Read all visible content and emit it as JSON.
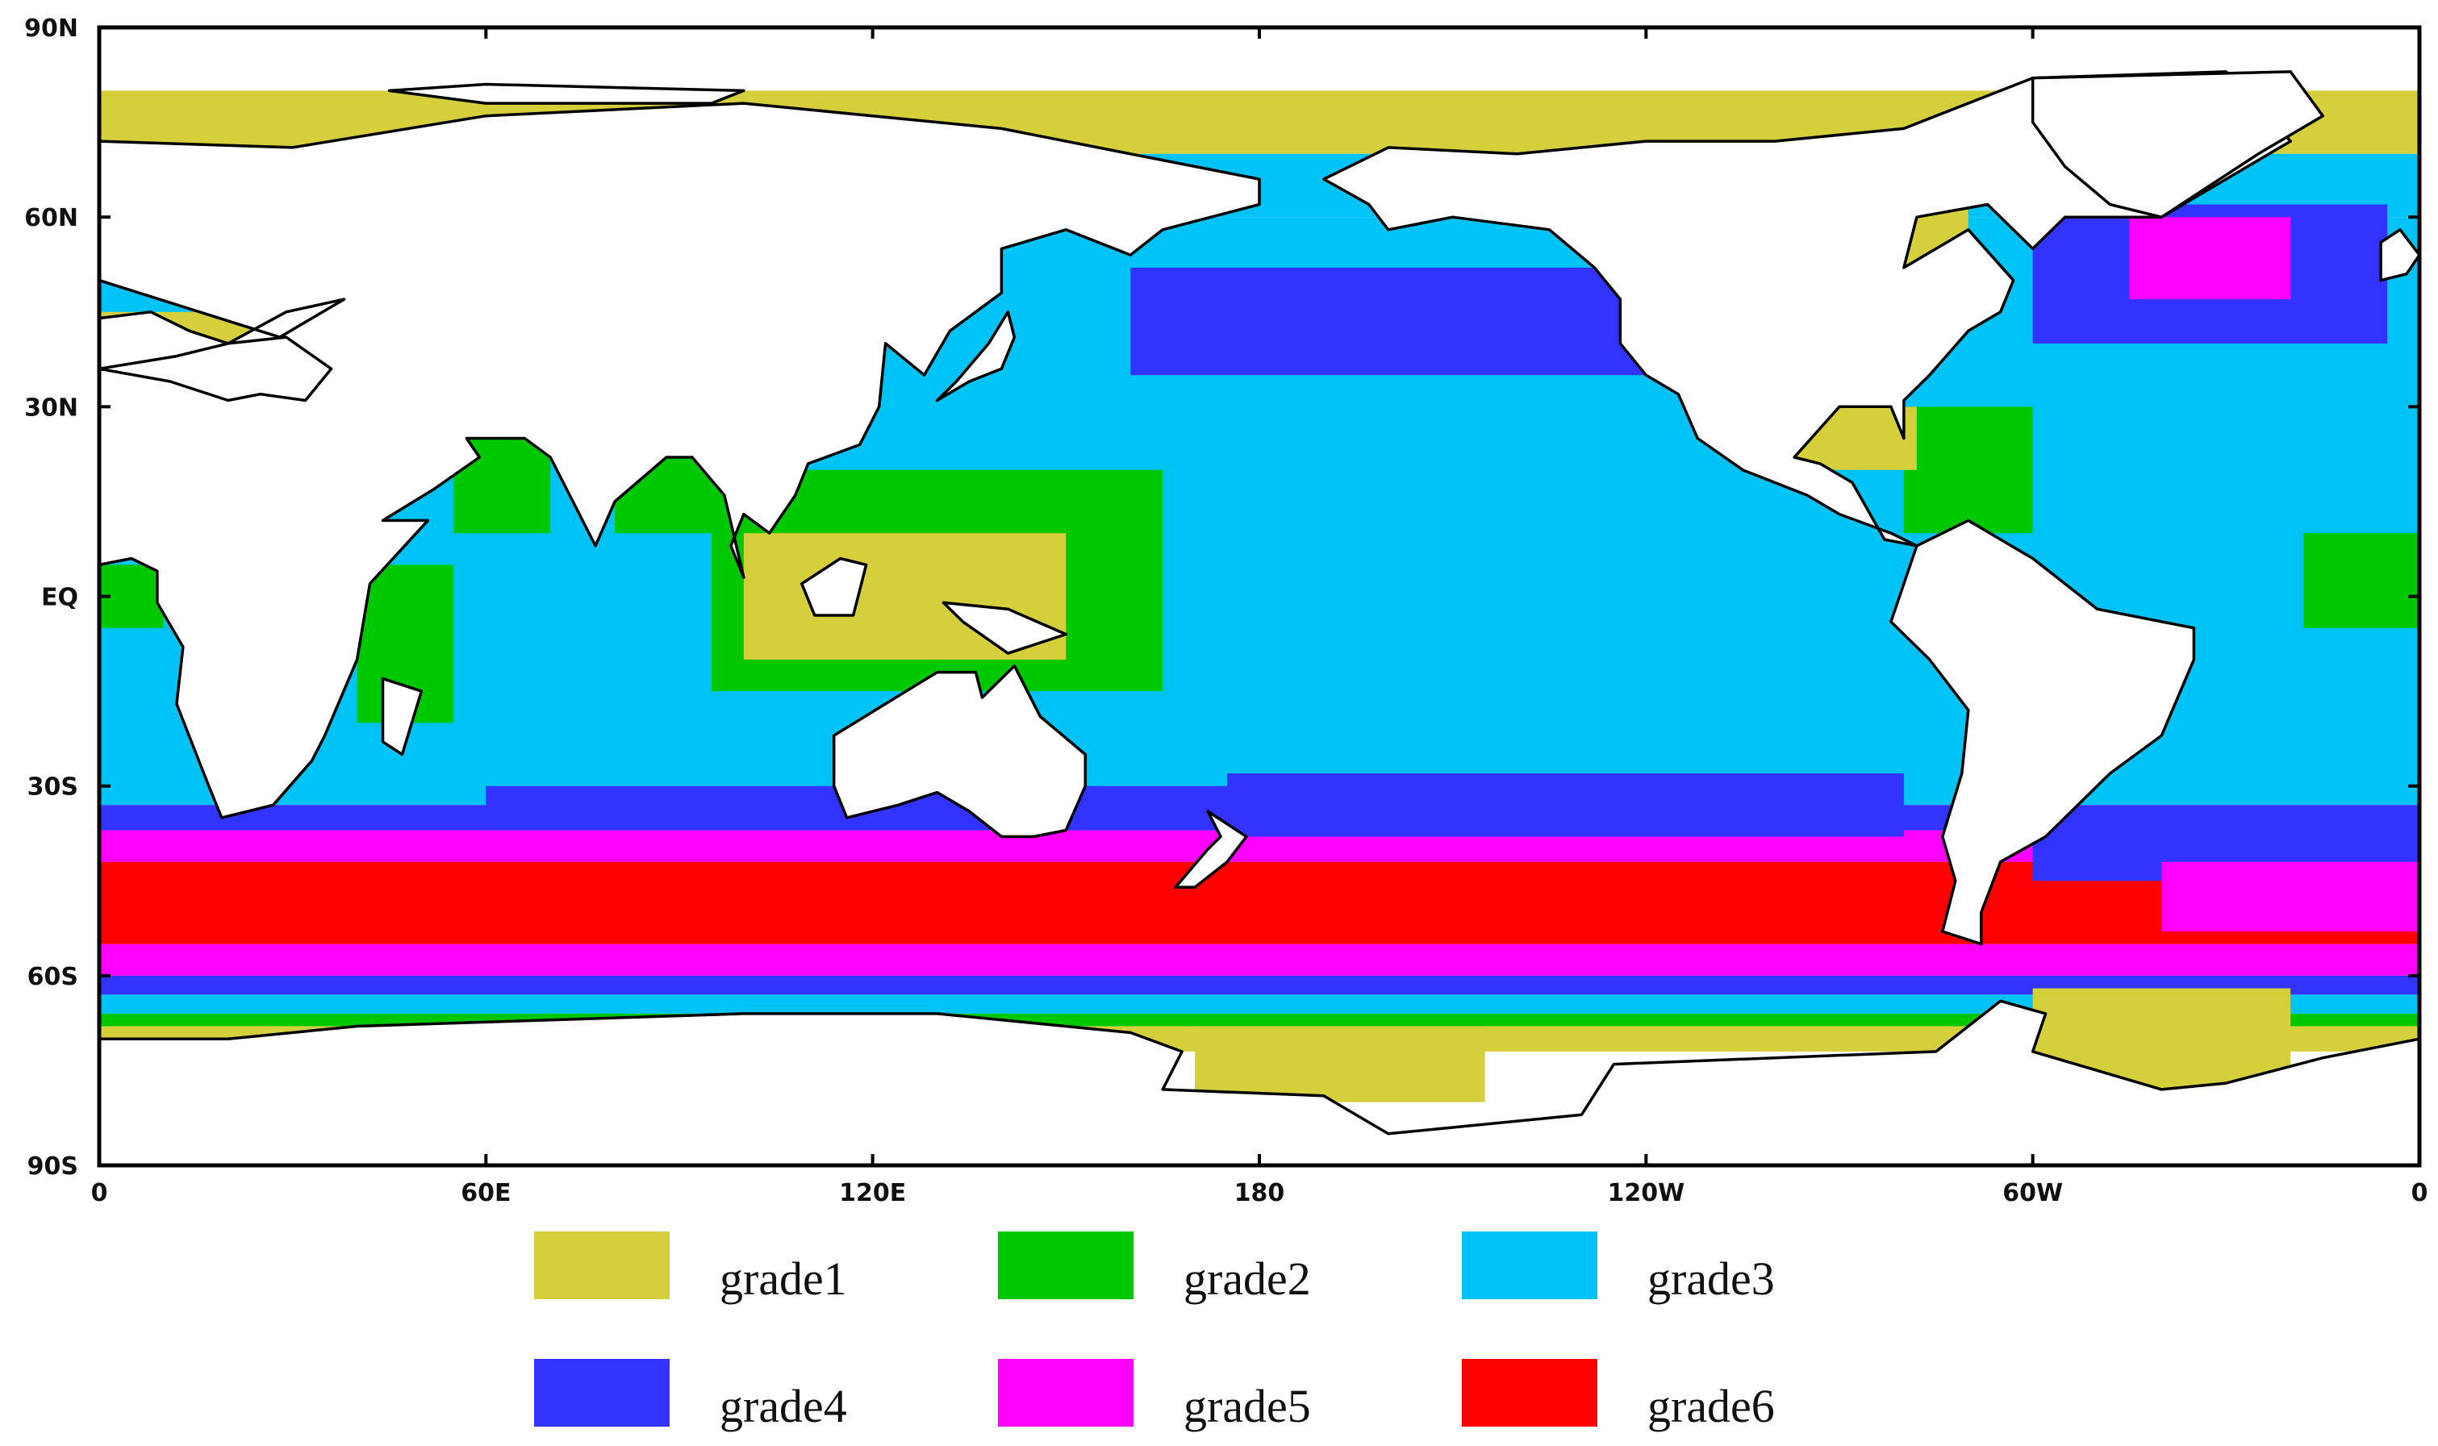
{
  "map": {
    "projection": "equirectangular",
    "lon_range": [
      0,
      360
    ],
    "lat_range": [
      -90,
      90
    ],
    "y_ticks": [
      {
        "lat": 90,
        "label": "90N"
      },
      {
        "lat": 60,
        "label": "60N"
      },
      {
        "lat": 30,
        "label": "30N"
      },
      {
        "lat": 0,
        "label": "EQ"
      },
      {
        "lat": -30,
        "label": "30S"
      },
      {
        "lat": -60,
        "label": "60S"
      },
      {
        "lat": -90,
        "label": "90S"
      }
    ],
    "x_ticks": [
      {
        "lon": 0,
        "label": "0"
      },
      {
        "lon": 60,
        "label": "60E"
      },
      {
        "lon": 120,
        "label": "120E"
      },
      {
        "lon": 180,
        "label": "180"
      },
      {
        "lon": 240,
        "label": "120W"
      },
      {
        "lon": 300,
        "label": "60W"
      },
      {
        "lon": 360,
        "label": "0"
      }
    ],
    "land_color": "#ffffff",
    "coastline_color": "#000000"
  },
  "legend": [
    {
      "label": "grade1",
      "color": "#d4cf3a"
    },
    {
      "label": "grade2",
      "color": "#00c800"
    },
    {
      "label": "grade3",
      "color": "#00c3f5"
    },
    {
      "label": "grade4",
      "color": "#3333ff"
    },
    {
      "label": "grade5",
      "color": "#ff00ff"
    },
    {
      "label": "grade6",
      "color": "#ff0000"
    }
  ],
  "field": {
    "bands_by_latitude": [
      {
        "lat_from": 80,
        "lat_to": 70,
        "grade": "grade1"
      },
      {
        "lat_from": 70,
        "lat_to": 60,
        "grade": "grade3"
      },
      {
        "lat_from": 60,
        "lat_to": -33,
        "grade": "grade3"
      },
      {
        "lat_from": -33,
        "lat_to": -37,
        "grade": "grade4"
      },
      {
        "lat_from": -37,
        "lat_to": -42,
        "grade": "grade5"
      },
      {
        "lat_from": -42,
        "lat_to": -55,
        "grade": "grade6"
      },
      {
        "lat_from": -55,
        "lat_to": -60,
        "grade": "grade5"
      },
      {
        "lat_from": -60,
        "lat_to": -63,
        "grade": "grade4"
      },
      {
        "lat_from": -63,
        "lat_to": -66,
        "grade": "grade3"
      },
      {
        "lat_from": -66,
        "lat_to": -68,
        "grade": "grade2"
      },
      {
        "lat_from": -68,
        "lat_to": -72,
        "grade": "grade1"
      }
    ],
    "regions": [
      {
        "name": "north-pacific-grade4",
        "grade": "grade4",
        "lon": [
          160,
          240
        ],
        "lat": [
          35,
          52
        ]
      },
      {
        "name": "north-atlantic-grade4",
        "grade": "grade4",
        "lon": [
          300,
          355
        ],
        "lat": [
          40,
          62
        ]
      },
      {
        "name": "north-atlantic-grade5",
        "grade": "grade5",
        "lon": [
          315,
          340
        ],
        "lat": [
          47,
          60
        ]
      },
      {
        "name": "south-pacific-grade4",
        "grade": "grade4",
        "lon": [
          175,
          280
        ],
        "lat": [
          -38,
          -28
        ]
      },
      {
        "name": "south-indian-grade4",
        "grade": "grade4",
        "lon": [
          60,
          190
        ],
        "lat": [
          -37,
          -30
        ]
      },
      {
        "name": "south-atlantic-grade4",
        "grade": "grade4",
        "lon": [
          300,
          360
        ],
        "lat": [
          -45,
          -35
        ]
      },
      {
        "name": "south-atlantic-grade5",
        "grade": "grade5",
        "lon": [
          320,
          360
        ],
        "lat": [
          -53,
          -42
        ]
      },
      {
        "name": "maritime-continent-grade2",
        "grade": "grade2",
        "lon": [
          95,
          165
        ],
        "lat": [
          -15,
          20
        ]
      },
      {
        "name": "maritime-continent-grade1",
        "grade": "grade1",
        "lon": [
          100,
          150
        ],
        "lat": [
          -10,
          10
        ]
      },
      {
        "name": "arabian-sea-grade2",
        "grade": "grade2",
        "lon": [
          55,
          70
        ],
        "lat": [
          10,
          25
        ]
      },
      {
        "name": "bay-of-bengal-grade2",
        "grade": "grade2",
        "lon": [
          80,
          95
        ],
        "lat": [
          10,
          22
        ]
      },
      {
        "name": "east-africa-grade2",
        "grade": "grade2",
        "lon": [
          40,
          55
        ],
        "lat": [
          -20,
          5
        ]
      },
      {
        "name": "gulf-of-guinea-grade2",
        "grade": "grade2",
        "lon": [
          0,
          10
        ],
        "lat": [
          -5,
          5
        ]
      },
      {
        "name": "east-atlantic-grade2",
        "grade": "grade2",
        "lon": [
          342,
          360
        ],
        "lat": [
          -5,
          10
        ]
      },
      {
        "name": "caribbean-grade2",
        "grade": "grade2",
        "lon": [
          280,
          300
        ],
        "lat": [
          10,
          30
        ]
      },
      {
        "name": "gulf-of-mexico-grade1",
        "grade": "grade1",
        "lon": [
          262,
          282
        ],
        "lat": [
          20,
          30
        ]
      },
      {
        "name": "mediterranean-grade1",
        "grade": "grade1",
        "lon": [
          0,
          35
        ],
        "lat": [
          30,
          45
        ]
      },
      {
        "name": "hudson-bay-grade1",
        "grade": "grade1",
        "lon": [
          270,
          290
        ],
        "lat": [
          52,
          65
        ]
      },
      {
        "name": "ross-sea-grade1",
        "grade": "grade1",
        "lon": [
          170,
          215
        ],
        "lat": [
          -80,
          -68
        ]
      },
      {
        "name": "weddell-sea-grade1",
        "grade": "grade1",
        "lon": [
          300,
          340
        ],
        "lat": [
          -78,
          -62
        ]
      }
    ]
  }
}
